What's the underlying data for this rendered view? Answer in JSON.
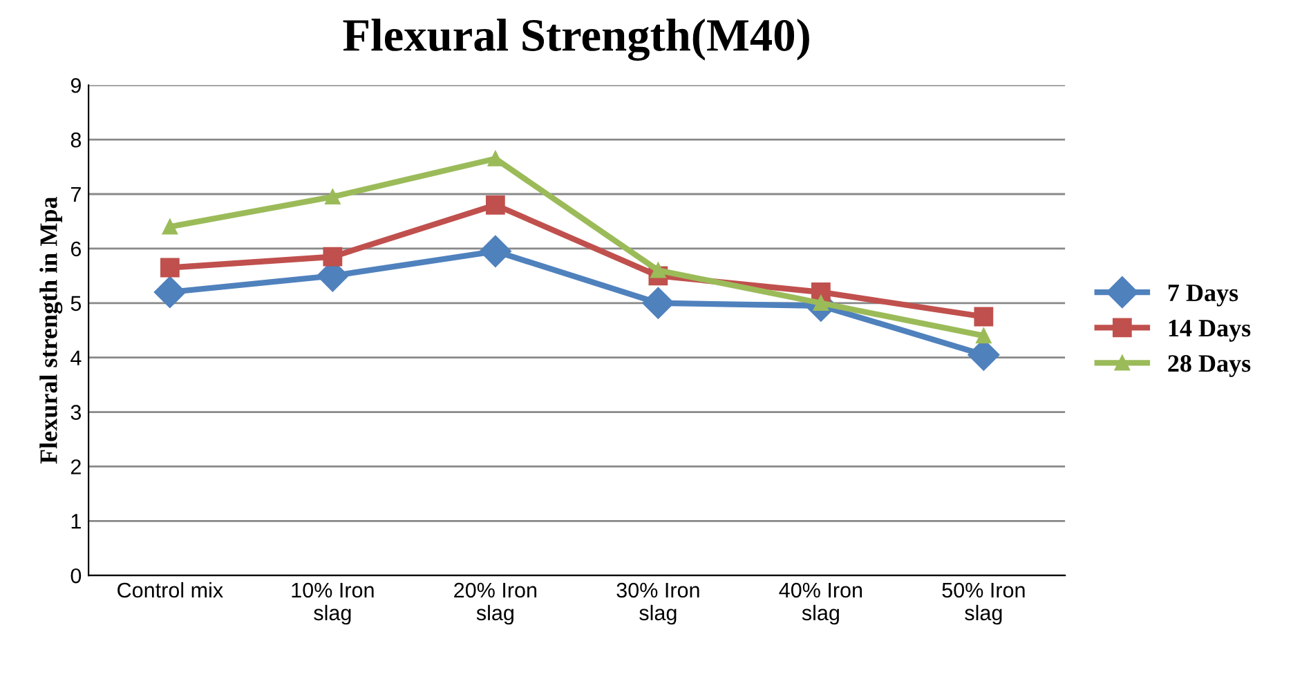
{
  "chart_data": {
    "type": "line",
    "title": "Flexural Strength(M40)",
    "ylabel": "Flexural strength in Mpa",
    "categories": [
      "Control mix",
      "10% Iron slag",
      "20% Iron slag",
      "30% Iron slag",
      "40% Iron slag",
      "50% Iron slag"
    ],
    "series": [
      {
        "name": "7 Days",
        "color": "#4f81bd",
        "marker": "diamond",
        "values": [
          5.2,
          5.5,
          5.95,
          5.0,
          4.95,
          4.05
        ]
      },
      {
        "name": "14 Days",
        "color": "#c0504d",
        "marker": "square",
        "values": [
          5.65,
          5.85,
          6.8,
          5.5,
          5.2,
          4.75
        ]
      },
      {
        "name": "28 Days",
        "color": "#9bbb59",
        "marker": "triangle",
        "values": [
          6.4,
          6.95,
          7.65,
          5.6,
          5.0,
          4.4
        ]
      }
    ],
    "ylim": [
      0,
      9
    ],
    "yticks": [
      0,
      1,
      2,
      3,
      4,
      5,
      6,
      7,
      8,
      9
    ],
    "grid": "y",
    "legend": "right",
    "line_style": "solid"
  }
}
